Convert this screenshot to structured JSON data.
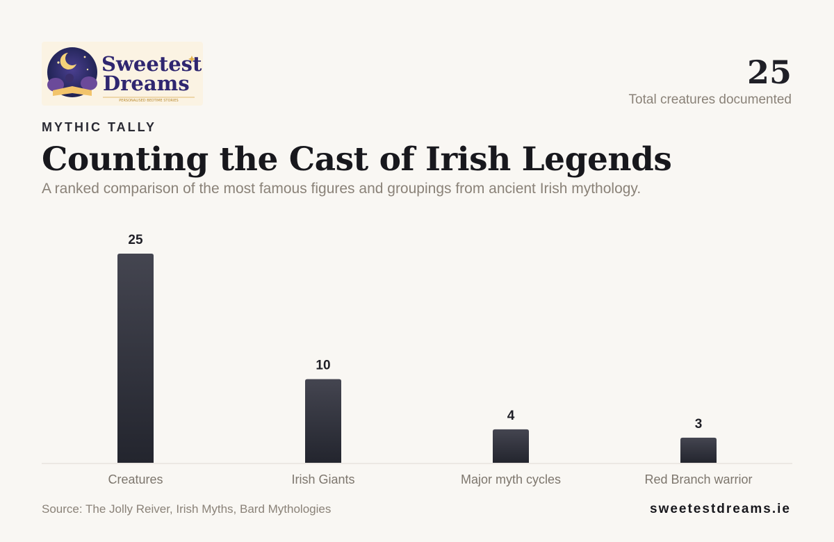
{
  "brand": {
    "logo_line1": "Sweetest",
    "logo_line2": "Dreams",
    "logo_tagline": "PERSONALISED BEDTIME STORIES"
  },
  "summary": {
    "value": "25",
    "label": "Total creatures documented"
  },
  "header": {
    "eyebrow": "MYTHIC TALLY",
    "title": "Counting the Cast of Irish Legends",
    "subtitle": "A ranked comparison of the most famous figures and groupings from ancient Irish mythology."
  },
  "chart_data": {
    "type": "bar",
    "categories": [
      "Creatures",
      "Irish Giants",
      "Major myth cycles",
      "Red Branch warrior"
    ],
    "values": [
      25,
      10,
      4,
      3
    ],
    "title": "Counting the Cast of Irish Legends",
    "xlabel": "",
    "ylabel": "",
    "ylim": [
      0,
      25
    ],
    "grid": false,
    "bar_color": "#2b2c36"
  },
  "footer": {
    "source": "Source: The Jolly Reiver, Irish Myths, Bard Mythologies",
    "site": "sweetestdreams.ie"
  }
}
